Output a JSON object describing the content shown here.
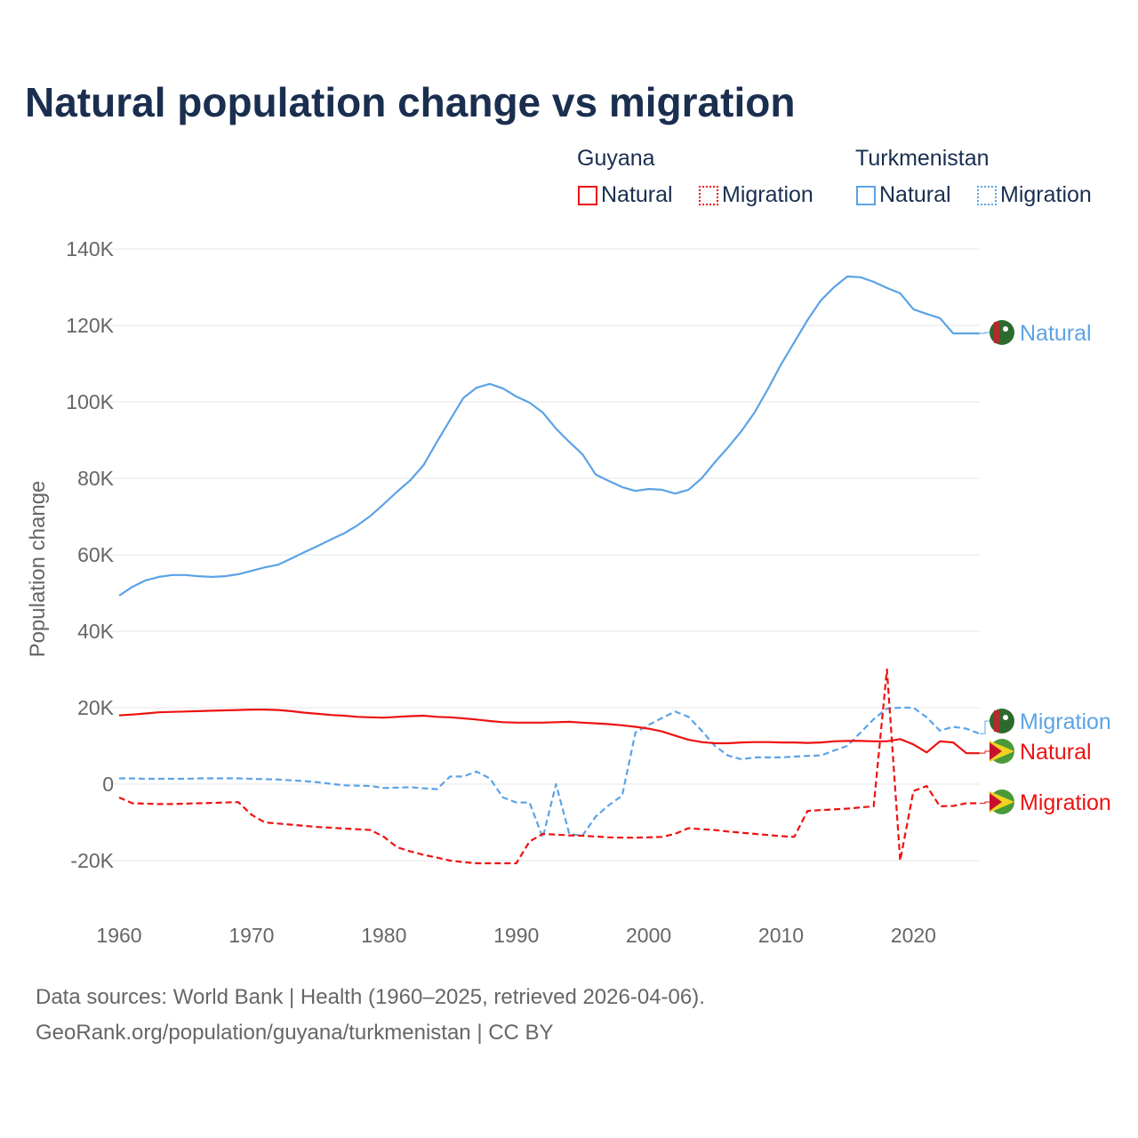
{
  "title": "Natural population change vs migration",
  "legend": {
    "groups": [
      {
        "name": "Guyana",
        "items": [
          {
            "label": "Natural",
            "color": "#ee1111",
            "style": "solid"
          },
          {
            "label": "Migration",
            "color": "#ee1111",
            "style": "dotted"
          }
        ]
      },
      {
        "name": "Turkmenistan",
        "items": [
          {
            "label": "Natural",
            "color": "#5ba3e6",
            "style": "solid"
          },
          {
            "label": "Migration",
            "color": "#5ba3e6",
            "style": "dotted"
          }
        ]
      }
    ]
  },
  "footer": {
    "line1": "Data sources: World Bank | Health (1960–2025, retrieved 2026-04-06).",
    "line2": "GeoRank.org/population/guyana/turkmenistan | CC BY"
  },
  "chart_data": {
    "type": "line",
    "title": "Natural population change vs migration",
    "xlabel": "",
    "ylabel": "Population change",
    "xlim": [
      1960,
      2025
    ],
    "ylim": [
      -30000,
      140000
    ],
    "xticks": [
      "1960",
      "1970",
      "1980",
      "1990",
      "2000",
      "2010",
      "2020"
    ],
    "yticks": [
      "140K",
      "120K",
      "100K",
      "80K",
      "60K",
      "40K",
      "20K",
      "0",
      "-20K"
    ],
    "ytick_values": [
      140000,
      120000,
      100000,
      80000,
      60000,
      40000,
      20000,
      0,
      -20000
    ],
    "x_start": 1960,
    "series": [
      {
        "name": "Turkmenistan Natural",
        "end_label": "Natural",
        "color": "#5ba3e6",
        "dash": false,
        "values": [
          49.3,
          51.6,
          53.3,
          54.2,
          54.7,
          54.7,
          54.4,
          54.2,
          54.4,
          54.9,
          55.8,
          56.7,
          57.4,
          59,
          60.7,
          62.3,
          64,
          65.6,
          67.7,
          70.2,
          73.3,
          76.5,
          79.5,
          83.5,
          89.5,
          95.3,
          101,
          103.7,
          104.7,
          103.5,
          101.4,
          99.8,
          97.2,
          93,
          89.5,
          86.3,
          81,
          79.3,
          77.7,
          76.7,
          77.2,
          77,
          76,
          77,
          80,
          84.2,
          88.1,
          92.3,
          97.2,
          103.3,
          109.8,
          115.6,
          121.4,
          126.5,
          130,
          132.8,
          132.6,
          131.4,
          129.8,
          128.4,
          124.2,
          123,
          121.9,
          117.9,
          117.9,
          117.9
        ]
      },
      {
        "name": "Turkmenistan Migration",
        "end_label": "Migration",
        "color": "#5ba3e6",
        "dash": true,
        "values": [
          1.5,
          1.5,
          1.4,
          1.4,
          1.4,
          1.4,
          1.5,
          1.5,
          1.5,
          1.5,
          1.4,
          1.3,
          1.2,
          1,
          0.8,
          0.5,
          0.1,
          -0.3,
          -0.4,
          -0.5,
          -1,
          -0.9,
          -0.8,
          -1.1,
          -1.3,
          2,
          2,
          3.3,
          1.5,
          -3.5,
          -4.8,
          -4.8,
          -14,
          0,
          -13,
          -13.5,
          -8.5,
          -5.5,
          -3,
          13.5,
          15.5,
          17.3,
          19,
          17.6,
          14,
          10,
          7.5,
          6.5,
          7,
          7,
          7,
          7.2,
          7.4,
          7.5,
          8.8,
          10,
          13.5,
          17,
          19.8,
          20,
          20,
          17.5,
          14,
          15,
          14.5,
          13.2
        ]
      },
      {
        "name": "Guyana Natural",
        "end_label": "Natural",
        "color": "#ee1111",
        "dash": false,
        "values": [
          18,
          18.2,
          18.5,
          18.8,
          18.9,
          19,
          19.1,
          19.2,
          19.3,
          19.4,
          19.5,
          19.5,
          19.4,
          19.1,
          18.7,
          18.4,
          18.1,
          17.9,
          17.6,
          17.5,
          17.4,
          17.6,
          17.8,
          17.9,
          17.6,
          17.5,
          17.2,
          16.9,
          16.5,
          16.2,
          16.1,
          16.1,
          16.1,
          16.2,
          16.3,
          16.1,
          15.9,
          15.7,
          15.4,
          15,
          14.5,
          13.8,
          12.7,
          11.6,
          11,
          10.7,
          10.7,
          10.9,
          11,
          11,
          10.9,
          10.9,
          10.8,
          10.9,
          11.2,
          11.3,
          11.3,
          11.2,
          11.2,
          11.8,
          10.4,
          8.3,
          11.2,
          10.9,
          8.1,
          8.1
        ]
      },
      {
        "name": "Guyana Migration",
        "end_label": "Migration",
        "color": "#ee1111",
        "dash": true,
        "values": [
          -3.5,
          -5,
          -5.1,
          -5.2,
          -5.2,
          -5.1,
          -5,
          -4.9,
          -4.8,
          -4.7,
          -8,
          -10,
          -10.3,
          -10.6,
          -10.9,
          -11.2,
          -11.4,
          -11.6,
          -11.8,
          -12,
          -13.8,
          -16.5,
          -17.6,
          -18.5,
          -19.2,
          -20,
          -20.4,
          -20.7,
          -20.7,
          -20.7,
          -20.7,
          -15,
          -13,
          -13.2,
          -13.4,
          -13.5,
          -13.7,
          -13.9,
          -14,
          -14,
          -13.9,
          -13.8,
          -13,
          -11.5,
          -11.8,
          -12,
          -12.4,
          -12.7,
          -13,
          -13.3,
          -13.6,
          -13.8,
          -7,
          -6.8,
          -6.6,
          -6.4,
          -6.1,
          -5.8,
          30,
          -20,
          -1.8,
          -0.5,
          -5.8,
          -5.7,
          -5,
          -5
        ]
      }
    ]
  }
}
